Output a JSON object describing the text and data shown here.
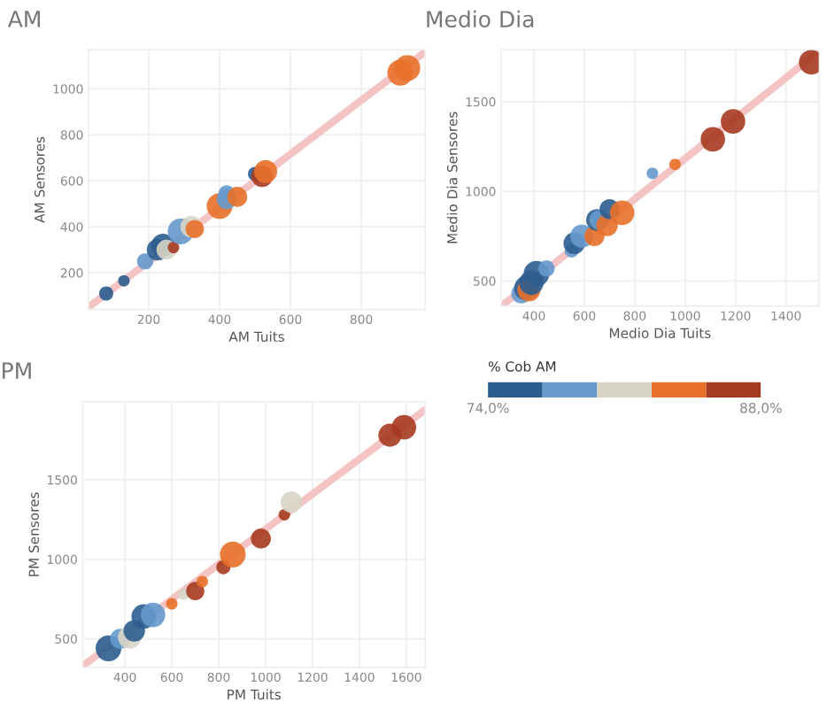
{
  "chart_data": [
    {
      "type": "bubble",
      "title": "AM",
      "xlabel": "AM Tuits",
      "ylabel": "AM Sensores",
      "xlim": [
        30,
        980
      ],
      "ylim": [
        40,
        1170
      ],
      "xticks": [
        200,
        400,
        600,
        800
      ],
      "yticks": [
        200,
        400,
        600,
        800,
        1000
      ],
      "grid": true,
      "clabel": "% Cob AM",
      "clim": [
        74,
        88
      ],
      "cticks": [
        {
          "value": 74,
          "label": "74,0%"
        },
        {
          "value": 88,
          "label": "88,0%"
        }
      ],
      "colors": [
        "#2c5d8f",
        "#6699cc",
        "#d8d5c7",
        "#e8702a",
        "#a63a20"
      ],
      "series": [
        {
          "x": [
            80,
            130,
            190,
            225,
            240,
            250,
            270,
            290,
            320,
            330,
            400,
            420,
            420,
            450,
            500,
            520,
            530,
            910,
            930
          ],
          "values": [
            110,
            165,
            250,
            300,
            320,
            300,
            310,
            380,
            400,
            390,
            490,
            520,
            545,
            530,
            630,
            620,
            640,
            1070,
            1090
          ],
          "colors": [
            "#2c5d8f",
            "#2c5d8f",
            "#6699cc",
            "#2c5d8f",
            "#2c5d8f",
            "#d8d5c7",
            "#a63a20",
            "#6699cc",
            "#d8d5c7",
            "#e8702a",
            "#e8702a",
            "#6699cc",
            "#6699cc",
            "#e8702a",
            "#2c5d8f",
            "#a63a20",
            "#e8702a",
            "#e8702a",
            "#e8702a"
          ],
          "sizes": [
            0.3,
            0.2,
            0.4,
            0.7,
            0.8,
            0.6,
            0.2,
            1,
            0.7,
            0.5,
            1,
            0.6,
            0.4,
            0.6,
            0.3,
            0.7,
            0.8,
            1,
            1
          ]
        },
        {
          "type": "line",
          "color": "#f4c4c4",
          "x": [
            30,
            980
          ],
          "values": [
            50,
            1160
          ]
        }
      ]
    },
    {
      "type": "bubble",
      "title": "Medio Dia",
      "xlabel": "Medio Dia Tuits",
      "ylabel": "Medio Dia Sensores",
      "xlim": [
        270,
        1530
      ],
      "ylim": [
        360,
        1790
      ],
      "xticks": [
        400,
        600,
        800,
        1000,
        1200,
        1400
      ],
      "yticks": [
        500,
        1000,
        1500
      ],
      "grid": true,
      "series": [
        {
          "x": [
            350,
            370,
            380,
            390,
            410,
            450,
            550,
            560,
            590,
            640,
            650,
            660,
            690,
            700,
            750,
            870,
            960,
            1110,
            1190,
            1500
          ],
          "values": [
            430,
            460,
            450,
            490,
            540,
            570,
            670,
            710,
            750,
            750,
            840,
            840,
            810,
            900,
            880,
            1100,
            1150,
            1290,
            1390,
            1720
          ],
          "colors": [
            "#6699cc",
            "#2c5d8f",
            "#e8702a",
            "#2c5d8f",
            "#2c5d8f",
            "#6699cc",
            "#6699cc",
            "#2c5d8f",
            "#6699cc",
            "#e8702a",
            "#2c5d8f",
            "#6699cc",
            "#e8702a",
            "#2c5d8f",
            "#e8702a",
            "#6699cc",
            "#e8702a",
            "#a63a20",
            "#a63a20",
            "#a63a20"
          ],
          "sizes": [
            0.6,
            0.9,
            0.8,
            0.9,
            1,
            0.4,
            0.3,
            0.7,
            0.8,
            0.6,
            0.7,
            0.6,
            0.7,
            0.6,
            0.9,
            0.2,
            0.2,
            0.9,
            0.9,
            0.9
          ]
        },
        {
          "type": "line",
          "color": "#f4c4c4",
          "x": [
            280,
            1530
          ],
          "values": [
            370,
            1780
          ]
        }
      ]
    },
    {
      "type": "bubble",
      "title": "PM",
      "xlabel": "PM Tuits",
      "ylabel": "PM Sensores",
      "xlim": [
        220,
        1680
      ],
      "ylim": [
        320,
        1990
      ],
      "xticks": [
        400,
        600,
        800,
        1000,
        1200,
        1400,
        1600
      ],
      "yticks": [
        500,
        1000,
        1500
      ],
      "grid": true,
      "series": [
        {
          "x": [
            330,
            380,
            420,
            440,
            480,
            520,
            600,
            650,
            700,
            730,
            820,
            860,
            980,
            1080,
            1110,
            1530,
            1590
          ],
          "values": [
            440,
            500,
            510,
            550,
            640,
            650,
            720,
            780,
            800,
            860,
            950,
            1030,
            1130,
            1280,
            1360,
            1780,
            1830
          ],
          "colors": [
            "#2c5d8f",
            "#6699cc",
            "#d8d5c7",
            "#2c5d8f",
            "#2c5d8f",
            "#6699cc",
            "#e8702a",
            "#d8d5c7",
            "#a63a20",
            "#e8702a",
            "#a63a20",
            "#e8702a",
            "#a63a20",
            "#a63a20",
            "#d8d5c7",
            "#a63a20",
            "#a63a20"
          ],
          "sizes": [
            1,
            0.6,
            0.8,
            0.7,
            0.9,
            0.9,
            0.2,
            0.2,
            0.5,
            0.2,
            0.3,
            1,
            0.6,
            0.2,
            0.7,
            0.8,
            0.9
          ]
        },
        {
          "type": "line",
          "color": "#f4c4c4",
          "x": [
            230,
            1680
          ],
          "values": [
            340,
            1940
          ]
        }
      ]
    }
  ]
}
